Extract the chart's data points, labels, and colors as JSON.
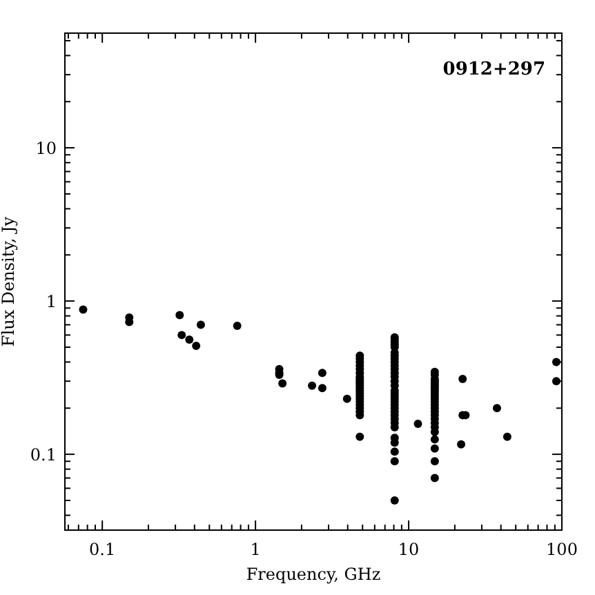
{
  "chart_data": {
    "type": "scatter",
    "xlabel": "Frequency, GHz",
    "ylabel": "Flux Density, Jy",
    "annotations": [
      "0912+297"
    ],
    "log": "xy",
    "marker": "circle",
    "grid": false,
    "xlim": [
      0.057,
      100
    ],
    "ylim": [
      0.032,
      56
    ],
    "xticks": [
      {
        "value": 0.06,
        "label": null
      },
      {
        "value": 0.07,
        "label": null
      },
      {
        "value": 0.08,
        "label": null
      },
      {
        "value": 0.09,
        "label": null
      },
      0.1,
      {
        "value": 0.2,
        "label": null
      },
      {
        "value": 0.3,
        "label": null
      },
      {
        "value": 0.4,
        "label": null
      },
      {
        "value": 0.5,
        "label": null
      },
      {
        "value": 0.6,
        "label": null
      },
      {
        "value": 0.7,
        "label": null
      },
      {
        "value": 0.8,
        "label": null
      },
      {
        "value": 0.9,
        "label": null
      },
      1,
      {
        "value": 2,
        "label": null
      },
      {
        "value": 3,
        "label": null
      },
      {
        "value": 4,
        "label": null
      },
      {
        "value": 5,
        "label": null
      },
      {
        "value": 6,
        "label": null
      },
      {
        "value": 7,
        "label": null
      },
      {
        "value": 8,
        "label": null
      },
      {
        "value": 9,
        "label": null
      },
      10,
      {
        "value": 20,
        "label": null
      },
      {
        "value": 30,
        "label": null
      },
      {
        "value": 40,
        "label": null
      },
      {
        "value": 50,
        "label": null
      },
      {
        "value": 60,
        "label": null
      },
      {
        "value": 70,
        "label": null
      },
      {
        "value": 80,
        "label": null
      },
      {
        "value": 90,
        "label": null
      },
      100
    ],
    "yticks": [
      {
        "value": 0.04,
        "label": null
      },
      {
        "value": 0.05,
        "label": null
      },
      {
        "value": 0.06,
        "label": null
      },
      {
        "value": 0.07,
        "label": null
      },
      {
        "value": 0.08,
        "label": null
      },
      {
        "value": 0.09,
        "label": null
      },
      0.1,
      {
        "value": 0.2,
        "label": null
      },
      {
        "value": 0.3,
        "label": null
      },
      {
        "value": 0.4,
        "label": null
      },
      {
        "value": 0.5,
        "label": null
      },
      {
        "value": 0.6,
        "label": null
      },
      {
        "value": 0.7,
        "label": null
      },
      {
        "value": 0.8,
        "label": null
      },
      {
        "value": 0.9,
        "label": null
      },
      1,
      {
        "value": 2,
        "label": null
      },
      {
        "value": 3,
        "label": null
      },
      {
        "value": 4,
        "label": null
      },
      {
        "value": 5,
        "label": null
      },
      {
        "value": 6,
        "label": null
      },
      {
        "value": 7,
        "label": null
      },
      {
        "value": 8,
        "label": null
      },
      {
        "value": 9,
        "label": null
      },
      10,
      {
        "value": 20,
        "label": null
      },
      {
        "value": 30,
        "label": null
      },
      {
        "value": 40,
        "label": null
      },
      {
        "value": 50,
        "label": null
      }
    ],
    "series": [
      {
        "color": "#000000",
        "x": [
          0.075,
          0.15,
          0.15,
          0.32,
          0.33,
          0.37,
          0.41,
          0.44,
          0.76,
          1.43,
          1.43,
          1.43,
          1.5,
          2.34,
          2.73,
          2.73,
          3.96,
          4.8,
          4.8,
          4.8,
          4.8,
          4.8,
          4.8,
          4.8,
          4.8,
          4.8,
          4.8,
          4.8,
          4.8,
          4.8,
          4.8,
          4.8,
          4.8,
          4.8,
          4.8,
          4.8,
          4.8,
          4.8,
          4.8,
          8.1,
          8.1,
          8.1,
          8.1,
          8.1,
          8.1,
          8.1,
          8.1,
          8.1,
          8.1,
          8.1,
          8.1,
          8.1,
          8.1,
          8.1,
          8.1,
          8.1,
          8.1,
          8.1,
          8.1,
          8.1,
          8.1,
          8.1,
          8.1,
          8.1,
          8.1,
          8.1,
          8.1,
          8.1,
          8.1,
          8.1,
          8.1,
          11.5,
          14.8,
          14.8,
          14.8,
          14.8,
          14.8,
          14.8,
          14.8,
          14.8,
          14.8,
          14.8,
          14.8,
          14.8,
          14.8,
          14.8,
          14.8,
          14.8,
          14.8,
          14.8,
          14.8,
          14.8,
          14.8,
          14.8,
          14.8,
          14.8,
          22.5,
          22.5,
          23.5,
          22,
          37.7,
          44,
          92,
          92
        ],
        "values": [
          0.88,
          0.78,
          0.73,
          0.81,
          0.6,
          0.56,
          0.51,
          0.7,
          0.69,
          0.36,
          0.34,
          0.33,
          0.29,
          0.28,
          0.34,
          0.27,
          0.23,
          0.44,
          0.42,
          0.4,
          0.38,
          0.36,
          0.34,
          0.32,
          0.31,
          0.3,
          0.29,
          0.28,
          0.27,
          0.26,
          0.25,
          0.24,
          0.23,
          0.22,
          0.21,
          0.2,
          0.19,
          0.18,
          0.13,
          0.58,
          0.56,
          0.54,
          0.52,
          0.5,
          0.46,
          0.44,
          0.42,
          0.4,
          0.38,
          0.36,
          0.34,
          0.32,
          0.3,
          0.28,
          0.26,
          0.25,
          0.24,
          0.23,
          0.22,
          0.21,
          0.2,
          0.19,
          0.18,
          0.17,
          0.16,
          0.15,
          0.128,
          0.119,
          0.104,
          0.09,
          0.05,
          0.158,
          0.345,
          0.33,
          0.31,
          0.3,
          0.29,
          0.28,
          0.27,
          0.26,
          0.25,
          0.24,
          0.23,
          0.22,
          0.21,
          0.2,
          0.19,
          0.18,
          0.17,
          0.16,
          0.15,
          0.14,
          0.125,
          0.109,
          0.09,
          0.07,
          0.31,
          0.18,
          0.18,
          0.116,
          0.2,
          0.13,
          0.4,
          0.3
        ]
      }
    ]
  }
}
